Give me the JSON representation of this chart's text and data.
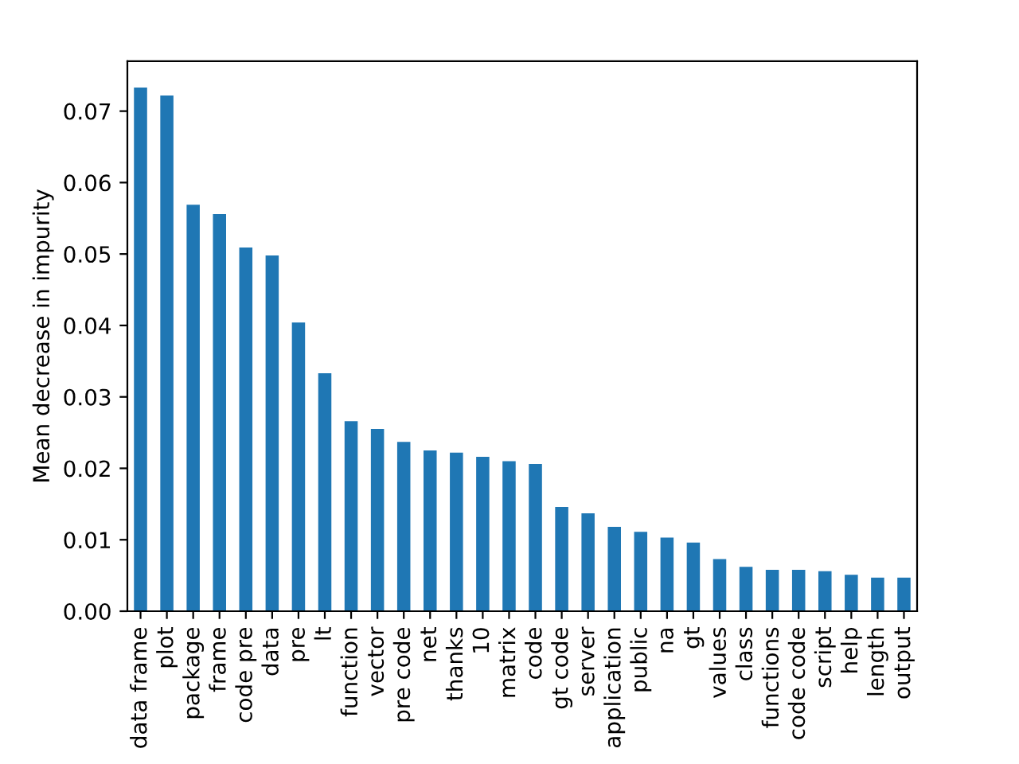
{
  "chart_data": {
    "type": "bar",
    "ylabel": "Mean decrease in impurity",
    "categories": [
      "data frame",
      "plot",
      "package",
      "frame",
      "code pre",
      "data",
      "pre",
      "lt",
      "function",
      "vector",
      "pre code",
      "net",
      "thanks",
      "10",
      "matrix",
      "code",
      "gt code",
      "server",
      "application",
      "public",
      "na",
      "gt",
      "values",
      "class",
      "functions",
      "code code",
      "script",
      "help",
      "length",
      "output"
    ],
    "values": [
      0.0733,
      0.0722,
      0.0569,
      0.0556,
      0.0509,
      0.0498,
      0.0404,
      0.0333,
      0.0266,
      0.0255,
      0.0237,
      0.0225,
      0.0222,
      0.0216,
      0.021,
      0.0206,
      0.0146,
      0.0137,
      0.0118,
      0.0111,
      0.0103,
      0.0096,
      0.0073,
      0.0062,
      0.0058,
      0.0058,
      0.0056,
      0.0051,
      0.0047,
      0.0047
    ],
    "color": "#1f77b4",
    "ylim": [
      0,
      0.077
    ],
    "yticks": [
      {
        "value": 0,
        "label": "0.00"
      },
      {
        "value": 0.01,
        "label": "0.01"
      },
      {
        "value": 0.02,
        "label": "0.02"
      },
      {
        "value": 0.03,
        "label": "0.03"
      },
      {
        "value": 0.04,
        "label": "0.04"
      },
      {
        "value": 0.05,
        "label": "0.05"
      },
      {
        "value": 0.06,
        "label": "0.06"
      },
      {
        "value": 0.07,
        "label": "0.07"
      }
    ],
    "grid": false
  }
}
